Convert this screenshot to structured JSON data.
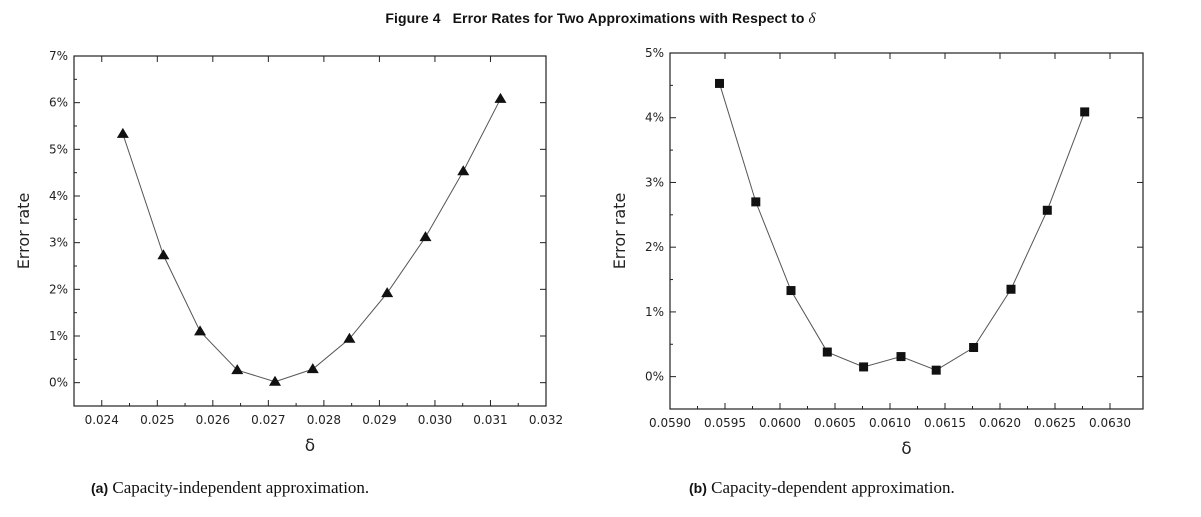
{
  "figure": {
    "title_prefix": "Figure 4",
    "title_text": "Error Rates for Two Approximations with Respect to",
    "title_symbol": "δ"
  },
  "captions": [
    {
      "letter": "(a)",
      "text": "Capacity-independent approximation."
    },
    {
      "letter": "(b)",
      "text": "Capacity-dependent approximation."
    }
  ],
  "chart_data": [
    {
      "type": "line",
      "marker": "triangle",
      "xlabel": "δ",
      "ylabel": "Error rate",
      "xlim": [
        0.0235,
        0.032
      ],
      "ylim": [
        -0.005,
        0.07
      ],
      "xticks": [
        0.024,
        0.025,
        0.026,
        0.027,
        0.028,
        0.029,
        0.03,
        0.031,
        0.032
      ],
      "xtick_labels": [
        "0.024",
        "0.025",
        "0.026",
        "0.027",
        "0.028",
        "0.029",
        "0.030",
        "0.031",
        "0.032"
      ],
      "yticks": [
        0,
        0.01,
        0.02,
        0.03,
        0.04,
        0.05,
        0.06,
        0.07
      ],
      "ytick_labels": [
        "0%",
        "1%",
        "2%",
        "3%",
        "4%",
        "5%",
        "6%",
        "7%"
      ],
      "grid": false,
      "series": [
        {
          "x": [
            0.02438,
            0.02511,
            0.02577,
            0.02644,
            0.02712,
            0.0278,
            0.02846,
            0.02914,
            0.02983,
            0.03051,
            0.03118
          ],
          "y": [
            0.0533,
            0.0273,
            0.011,
            0.0027,
            0.0002,
            0.0029,
            0.0094,
            0.0192,
            0.0312,
            0.0453,
            0.0608
          ]
        }
      ]
    },
    {
      "type": "line",
      "marker": "square",
      "xlabel": "δ",
      "ylabel": "Error rate",
      "xlim": [
        0.059,
        0.0633
      ],
      "ylim": [
        -0.005,
        0.05
      ],
      "xticks": [
        0.059,
        0.0595,
        0.06,
        0.0605,
        0.061,
        0.0615,
        0.062,
        0.0625,
        0.063
      ],
      "xtick_labels": [
        "0.0590",
        "0.0595",
        "0.0600",
        "0.0605",
        "0.0610",
        "0.0615",
        "0.0620",
        "0.0625",
        "0.0630"
      ],
      "yticks": [
        0,
        0.01,
        0.02,
        0.03,
        0.04,
        0.05
      ],
      "ytick_labels": [
        "0%",
        "1%",
        "2%",
        "3%",
        "4%",
        "5%"
      ],
      "grid": false,
      "series": [
        {
          "x": [
            0.05945,
            0.05978,
            0.0601,
            0.06043,
            0.06076,
            0.0611,
            0.06142,
            0.06176,
            0.0621,
            0.06243,
            0.06277
          ],
          "y": [
            0.0453,
            0.027,
            0.0133,
            0.0038,
            0.0015,
            0.0031,
            0.001,
            0.0045,
            0.0135,
            0.0257,
            0.0409
          ]
        }
      ]
    }
  ]
}
